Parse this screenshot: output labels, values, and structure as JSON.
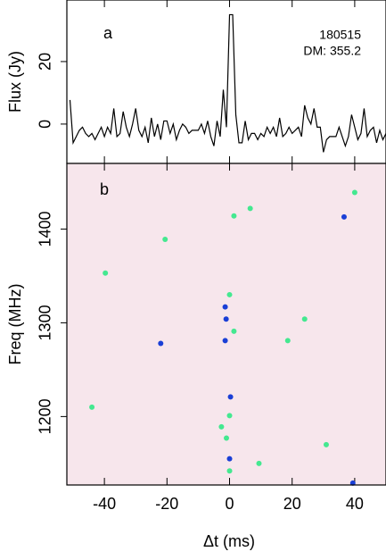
{
  "chart_data": [
    {
      "type": "line",
      "ylabel": "Flux (Jy)",
      "annotations": [
        "a",
        "180515",
        "DM: 355.2"
      ],
      "color": "#000000",
      "x": [
        -51,
        -50,
        -49,
        -48,
        -47,
        -46,
        -45,
        -44,
        -43,
        -42,
        -41,
        -40,
        -39,
        -38,
        -37,
        -36,
        -35,
        -34,
        -33,
        -32,
        -31,
        -30,
        -29,
        -28,
        -27,
        -26,
        -25,
        -24,
        -23,
        -22,
        -21,
        -20,
        -19,
        -18,
        -17,
        -16,
        -15,
        -14,
        -13,
        -12,
        -11,
        -10,
        -9,
        -8,
        -7,
        -6,
        -5,
        -4,
        -3,
        -2,
        -1,
        0,
        1,
        2,
        3,
        4,
        5,
        6,
        7,
        8,
        9,
        10,
        11,
        12,
        13,
        14,
        15,
        16,
        17,
        18,
        19,
        20,
        21,
        22,
        23,
        24,
        25,
        26,
        27,
        28,
        29,
        30,
        31,
        32,
        33,
        34,
        35,
        36,
        37,
        38,
        39,
        40,
        41,
        42,
        43,
        44,
        45,
        46,
        47,
        48,
        49,
        50
      ],
      "values": [
        7.7,
        -6,
        -4,
        -2,
        -1,
        -3,
        -4,
        -3,
        -5,
        -3,
        -1,
        -4,
        -1,
        -3,
        5,
        -4,
        -3,
        4,
        -1,
        -4,
        0,
        5,
        -2,
        -4,
        -1,
        -6,
        2,
        -4,
        0,
        -5,
        1,
        1,
        -3,
        0,
        -5,
        -2,
        0,
        -1,
        -3,
        -2,
        -2,
        -2,
        0,
        -3,
        1,
        -4,
        -7,
        1,
        -4,
        11,
        -1,
        35,
        35,
        3,
        -6,
        -6,
        1,
        -5,
        -3,
        -3,
        -5,
        -3,
        -4,
        -1,
        -3,
        -1,
        -4,
        2,
        -4,
        -3,
        -1,
        -3,
        -2,
        -1,
        -4,
        6,
        2,
        0,
        5,
        -1,
        -1,
        -9,
        -5,
        -4,
        -4,
        -4,
        -1,
        -4,
        -7,
        -4,
        3,
        -1,
        -5,
        -3,
        5,
        -4,
        -2,
        -1,
        -6,
        -2,
        -5,
        -3
      ],
      "xlim": [
        -52,
        50
      ],
      "xticks": [
        -40,
        -20,
        0,
        20,
        40
      ],
      "ylim": [
        -12.6,
        39.7
      ],
      "yticks": [
        0,
        20
      ]
    },
    {
      "type": "scatter",
      "annotations": [
        "b"
      ],
      "xlabel": "Δt (ms)",
      "ylabel": "Freq (MHz)",
      "background_color": "#f7e6ec",
      "x": [
        36.6,
        -1.4,
        -1.1,
        -1.4,
        -22,
        0.3,
        0,
        39.4,
        1.4,
        6.6,
        -20.6,
        -39.7,
        0,
        1.4,
        18.6,
        24,
        -44,
        -2.6,
        0,
        -1,
        30.9,
        0,
        9.4,
        40
      ],
      "y": [
        1413,
        1317,
        1304,
        1281,
        1278,
        1221,
        1155,
        1129,
        1414,
        1422,
        1389,
        1353,
        1330,
        1291,
        1281,
        1304,
        1210,
        1189,
        1201,
        1177,
        1170,
        1142,
        1150,
        1439
      ],
      "colors": [
        "#1a3fd6",
        "#1a3fd6",
        "#1a3fd6",
        "#1a3fd6",
        "#1a3fd6",
        "#1a3fd6",
        "#1a3fd6",
        "#1a3fd6",
        "#44e890",
        "#44e890",
        "#44e890",
        "#44e890",
        "#44e890",
        "#44e890",
        "#44e890",
        "#44e890",
        "#44e890",
        "#44e890",
        "#44e890",
        "#44e890",
        "#44e890",
        "#44e890",
        "#44e890",
        "#44e890"
      ],
      "xlim": [
        -52,
        50
      ],
      "xticks": [
        -40,
        -20,
        0,
        20,
        40
      ],
      "ylim": [
        1127,
        1470
      ],
      "yticks": [
        1200,
        1300,
        1400
      ]
    }
  ]
}
